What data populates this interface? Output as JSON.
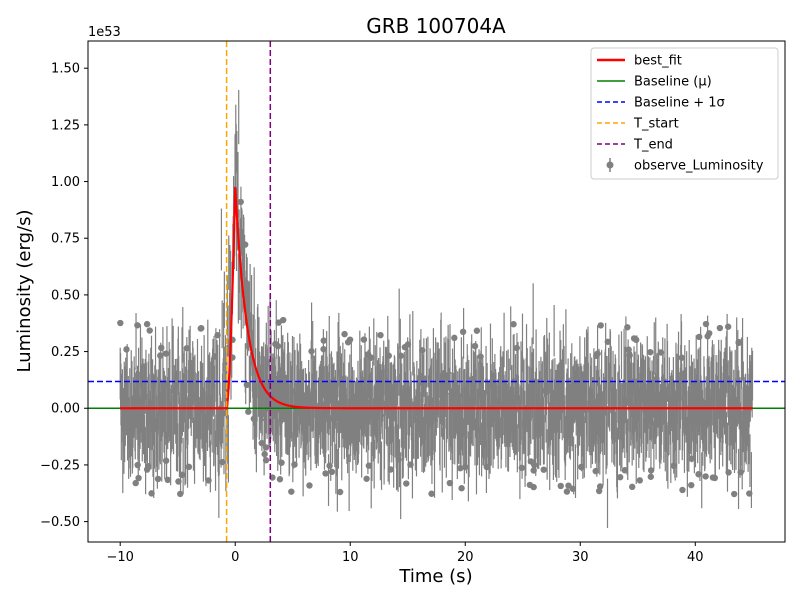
{
  "chart_data": {
    "type": "scatter",
    "title": "GRB 100704A",
    "xlabel": "Time (s)",
    "ylabel": "Luminosity (erg/s)",
    "y_offset_label": "1e53",
    "xlim": [
      -12.8,
      47.8
    ],
    "ylim": [
      -0.59,
      1.62
    ],
    "x_ticks": [
      -10,
      0,
      10,
      20,
      30,
      40
    ],
    "x_tick_labels": [
      "−10",
      "0",
      "10",
      "20",
      "30",
      "40"
    ],
    "y_ticks": [
      -0.5,
      -0.25,
      0.0,
      0.25,
      0.5,
      0.75,
      1.0,
      1.25,
      1.5
    ],
    "y_tick_labels": [
      "−0.50",
      "−0.25",
      "0.00",
      "0.25",
      "0.50",
      "0.75",
      "1.00",
      "1.25",
      "1.50"
    ],
    "grid": false,
    "legend_position": "top-right",
    "series": [
      {
        "name": "best_fit",
        "kind": "line",
        "color": "#ff0000",
        "style": "solid"
      },
      {
        "name": "Baseline (μ)",
        "kind": "hline",
        "color": "#008000",
        "style": "solid",
        "y": 0.0
      },
      {
        "name": "Baseline + 1σ",
        "kind": "hline",
        "color": "#0000ff",
        "style": "dashed",
        "y": 0.118
      },
      {
        "name": "T_start",
        "kind": "vline",
        "color": "#ffa500",
        "style": "dashed",
        "x": -0.75
      },
      {
        "name": "T_end",
        "kind": "vline",
        "color": "#800080",
        "style": "dashed",
        "x": 3.05
      },
      {
        "name": "observe_Luminosity",
        "kind": "errorbar",
        "color": "#808080"
      }
    ],
    "observed": {
      "x_range": [
        -10,
        45
      ],
      "baseline_scatter_sigma": 0.12,
      "typical_error": 0.13,
      "pulse_peak_time": 0.0,
      "pulse_peak_value": 1.0
    },
    "best_fit_model": {
      "t_start": -0.75,
      "peak_time": 0.0,
      "peak_value": 0.975,
      "decay_tau": 1.05
    }
  }
}
